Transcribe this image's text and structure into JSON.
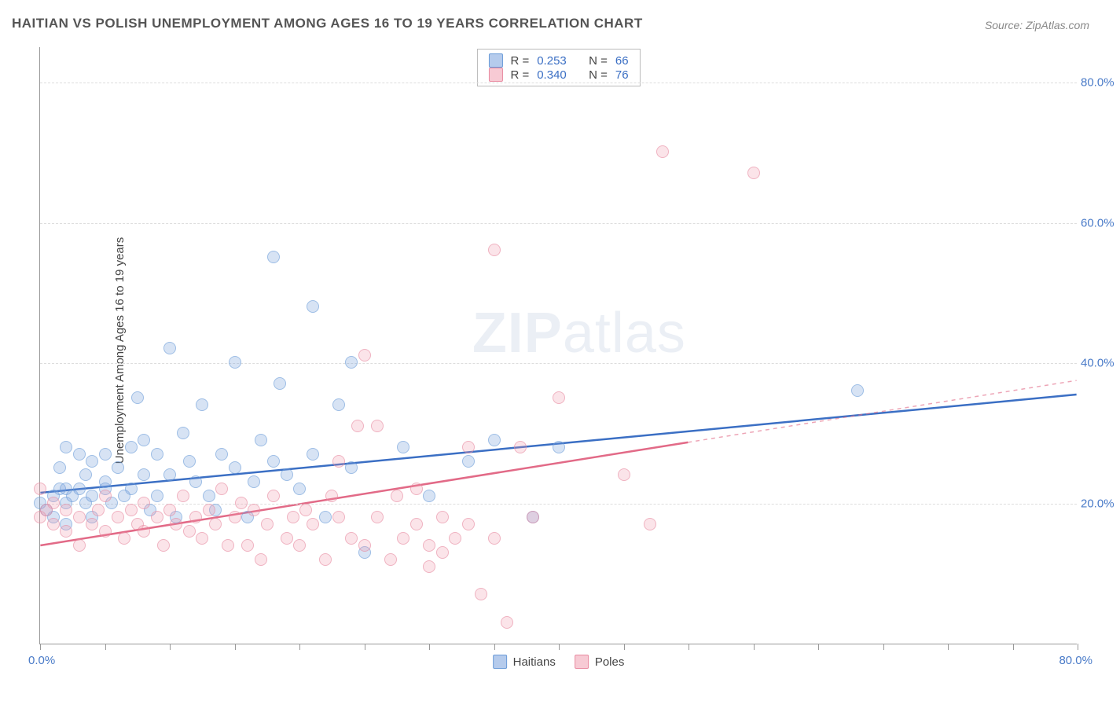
{
  "title": "HAITIAN VS POLISH UNEMPLOYMENT AMONG AGES 16 TO 19 YEARS CORRELATION CHART",
  "source": "Source: ZipAtlas.com",
  "ylabel": "Unemployment Among Ages 16 to 19 years",
  "watermark_bold": "ZIP",
  "watermark_light": "atlas",
  "chart": {
    "type": "scatter",
    "xlim": [
      0,
      80
    ],
    "ylim": [
      0,
      85
    ],
    "xorigin_label": "0.0%",
    "xmax_label": "80.0%",
    "yticks": [
      {
        "v": 20,
        "label": "20.0%"
      },
      {
        "v": 40,
        "label": "40.0%"
      },
      {
        "v": 60,
        "label": "60.0%"
      },
      {
        "v": 80,
        "label": "80.0%"
      }
    ],
    "xticks_minor": [
      0,
      5,
      10,
      15,
      20,
      25,
      30,
      35,
      40,
      45,
      50,
      55,
      60,
      65,
      70,
      75,
      80
    ],
    "series": [
      {
        "id": "a",
        "name": "Haitians",
        "color_fill": "rgba(120,160,220,0.45)",
        "color_stroke": "#6a9bd8",
        "reg_color": "#3b6fc4",
        "r": "0.253",
        "n": "66",
        "regression": {
          "x1": 0,
          "y1": 21.5,
          "x2": 80,
          "y2": 35.5
        },
        "points": [
          [
            0,
            20
          ],
          [
            0.5,
            19
          ],
          [
            1,
            21
          ],
          [
            1,
            18
          ],
          [
            1.5,
            22
          ],
          [
            1.5,
            25
          ],
          [
            2,
            17
          ],
          [
            2,
            20
          ],
          [
            2,
            22
          ],
          [
            2.5,
            21
          ],
          [
            3,
            27
          ],
          [
            3,
            22
          ],
          [
            3.5,
            24
          ],
          [
            3.5,
            20
          ],
          [
            4,
            26
          ],
          [
            4,
            21
          ],
          [
            4,
            18
          ],
          [
            5,
            22
          ],
          [
            5,
            27
          ],
          [
            5,
            23
          ],
          [
            5.5,
            20
          ],
          [
            6,
            25
          ],
          [
            6.5,
            21
          ],
          [
            7,
            28
          ],
          [
            7,
            22
          ],
          [
            7.5,
            35
          ],
          [
            8,
            24
          ],
          [
            8,
            29
          ],
          [
            8.5,
            19
          ],
          [
            9,
            27
          ],
          [
            9,
            21
          ],
          [
            10,
            42
          ],
          [
            10,
            24
          ],
          [
            10.5,
            18
          ],
          [
            11,
            30
          ],
          [
            11.5,
            26
          ],
          [
            12,
            23
          ],
          [
            12.5,
            34
          ],
          [
            13,
            21
          ],
          [
            13.5,
            19
          ],
          [
            14,
            27
          ],
          [
            15,
            40
          ],
          [
            15,
            25
          ],
          [
            16,
            18
          ],
          [
            16.5,
            23
          ],
          [
            17,
            29
          ],
          [
            18,
            55
          ],
          [
            18,
            26
          ],
          [
            18.5,
            37
          ],
          [
            19,
            24
          ],
          [
            20,
            22
          ],
          [
            21,
            48
          ],
          [
            21,
            27
          ],
          [
            22,
            18
          ],
          [
            23,
            34
          ],
          [
            24,
            40
          ],
          [
            24,
            25
          ],
          [
            25,
            13
          ],
          [
            28,
            28
          ],
          [
            30,
            21
          ],
          [
            33,
            26
          ],
          [
            35,
            29
          ],
          [
            38,
            18
          ],
          [
            40,
            28
          ],
          [
            63,
            36
          ],
          [
            2,
            28
          ]
        ]
      },
      {
        "id": "b",
        "name": "Poles",
        "color_fill": "rgba(240,150,170,0.40)",
        "color_stroke": "#e88aa0",
        "reg_color": "#e26a87",
        "r": "0.340",
        "n": "76",
        "regression": {
          "x1": 0,
          "y1": 14.0,
          "x2": 80,
          "y2": 37.5
        },
        "regression_solid_to": 50,
        "points": [
          [
            0,
            22
          ],
          [
            0,
            18
          ],
          [
            0.5,
            19
          ],
          [
            1,
            17
          ],
          [
            1,
            20
          ],
          [
            2,
            16
          ],
          [
            2,
            19
          ],
          [
            3,
            18
          ],
          [
            3,
            14
          ],
          [
            4,
            17
          ],
          [
            4.5,
            19
          ],
          [
            5,
            16
          ],
          [
            5,
            21
          ],
          [
            6,
            18
          ],
          [
            6.5,
            15
          ],
          [
            7,
            19
          ],
          [
            7.5,
            17
          ],
          [
            8,
            20
          ],
          [
            8,
            16
          ],
          [
            9,
            18
          ],
          [
            9.5,
            14
          ],
          [
            10,
            19
          ],
          [
            10.5,
            17
          ],
          [
            11,
            21
          ],
          [
            11.5,
            16
          ],
          [
            12,
            18
          ],
          [
            12.5,
            15
          ],
          [
            13,
            19
          ],
          [
            13.5,
            17
          ],
          [
            14,
            22
          ],
          [
            14.5,
            14
          ],
          [
            15,
            18
          ],
          [
            15.5,
            20
          ],
          [
            16,
            14
          ],
          [
            16.5,
            19
          ],
          [
            17,
            12
          ],
          [
            17.5,
            17
          ],
          [
            18,
            21
          ],
          [
            19,
            15
          ],
          [
            19.5,
            18
          ],
          [
            20,
            14
          ],
          [
            20.5,
            19
          ],
          [
            21,
            17
          ],
          [
            22,
            12
          ],
          [
            22.5,
            21
          ],
          [
            23,
            18
          ],
          [
            24,
            15
          ],
          [
            24.5,
            31
          ],
          [
            25,
            14
          ],
          [
            25,
            41
          ],
          [
            26,
            18
          ],
          [
            27,
            12
          ],
          [
            27.5,
            21
          ],
          [
            28,
            15
          ],
          [
            29,
            17
          ],
          [
            30,
            14
          ],
          [
            30,
            11
          ],
          [
            31,
            18
          ],
          [
            32,
            15
          ],
          [
            33,
            17
          ],
          [
            34,
            7
          ],
          [
            35,
            56
          ],
          [
            35,
            15
          ],
          [
            36,
            3
          ],
          [
            37,
            28
          ],
          [
            38,
            18
          ],
          [
            40,
            35
          ],
          [
            45,
            24
          ],
          [
            47,
            17
          ],
          [
            48,
            70
          ],
          [
            55,
            67
          ],
          [
            33,
            28
          ],
          [
            26,
            31
          ],
          [
            29,
            22
          ],
          [
            31,
            13
          ],
          [
            23,
            26
          ]
        ]
      }
    ]
  },
  "legend_bottom": [
    {
      "series": "a",
      "label": "Haitians"
    },
    {
      "series": "b",
      "label": "Poles"
    }
  ]
}
